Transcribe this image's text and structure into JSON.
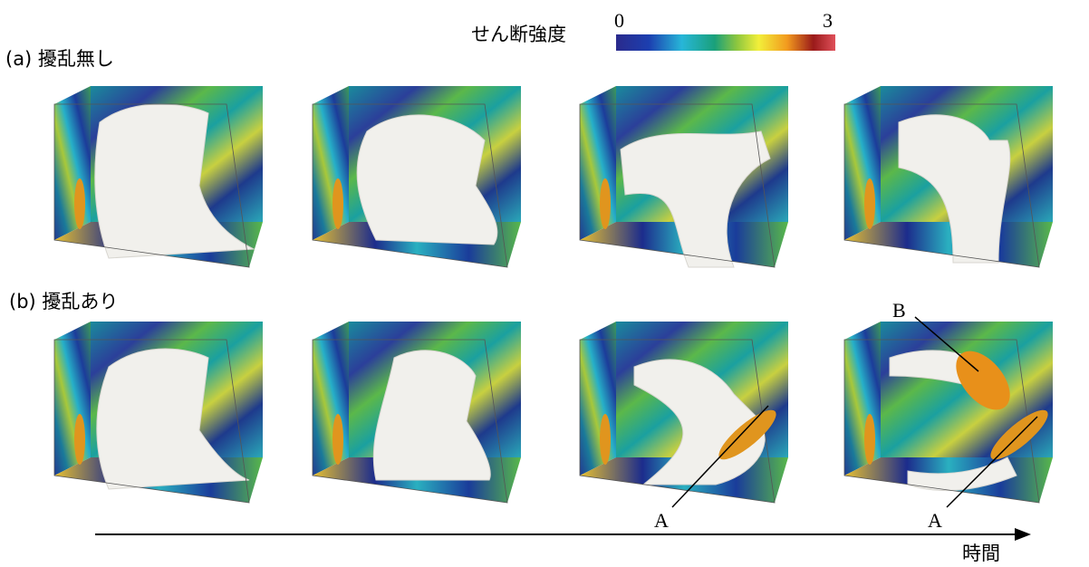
{
  "colorbar": {
    "label": "せん断強度",
    "min": 0,
    "max": 3
  },
  "rows": [
    {
      "label": "(a) 擾乱無し"
    },
    {
      "label": "(b) 擾乱あり"
    }
  ],
  "annotations": {
    "a1": "A",
    "a2": "A",
    "b": "B"
  },
  "time_axis": {
    "label": "時間"
  }
}
